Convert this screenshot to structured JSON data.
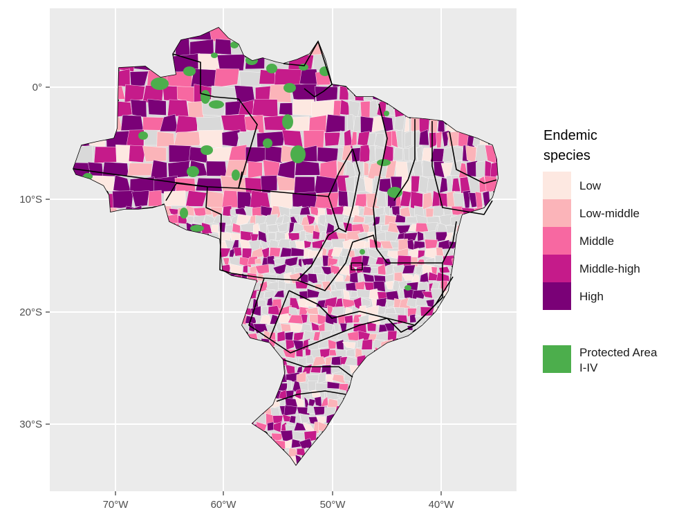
{
  "map": {
    "x_ticks": [
      "70°W",
      "60°W",
      "50°W",
      "40°W"
    ],
    "y_ticks": [
      "0°",
      "10°S",
      "20°S",
      "30°S"
    ],
    "background": "#ebebeb",
    "gridline_color": "#ffffff",
    "no_data_color": "#d9d9d9",
    "border_color": "#000000"
  },
  "legend": {
    "title_line1": "Endemic",
    "title_line2": "species",
    "categories": [
      {
        "label": "Low",
        "color": "#fde8e1"
      },
      {
        "label": "Low-middle",
        "color": "#fbb4b9"
      },
      {
        "label": "Middle",
        "color": "#f768a1"
      },
      {
        "label": "Middle-high",
        "color": "#c51b8a"
      },
      {
        "label": "High",
        "color": "#7a0177"
      }
    ],
    "protected_line1": "Protected Area",
    "protected_line2": "I-IV",
    "protected_color": "#4cae4c"
  }
}
